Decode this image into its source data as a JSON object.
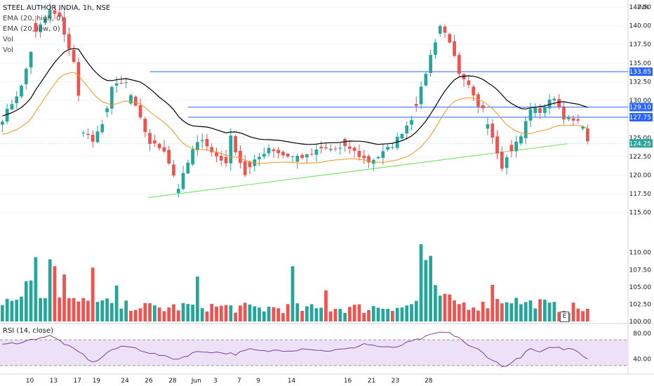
{
  "header": {
    "symbol_line": "STEEL AUTHOR INDIA, 1h, NSE",
    "indicators": [
      "EMA (20, high, 0)",
      "EMA (20, low, 0)",
      "Vol",
      "Vol"
    ],
    "rsi_label": "RSI (14, close)",
    "currency": "INR",
    "event_badge": "E"
  },
  "colors": {
    "up": "#26a69a",
    "down": "#ef5350",
    "ema_high": "#000000",
    "ema_low": "#f7931e",
    "hline": "#2962ff",
    "trendline": "#7ee36d",
    "rsi": "#7e3f98",
    "rsi_band": "#ece1f7"
  },
  "chart_data": {
    "type": "candlestick",
    "price_axis": {
      "ylim": [
        111.5,
        142.5
      ],
      "ticks": [
        "115.00",
        "117.50",
        "120.00",
        "122.50",
        "125.00",
        "127.50",
        "130.00",
        "132.50",
        "135.00",
        "137.50",
        "140.00",
        "142.50"
      ]
    },
    "volume_axis": {
      "ticks": [
        "100.00",
        "102.50",
        "105.00",
        "107.50",
        "110.00"
      ]
    },
    "rsi_axis": {
      "ylim": [
        20,
        90
      ],
      "ticks": [
        "40.00",
        "80.00"
      ],
      "band": [
        30,
        70
      ]
    },
    "x_tick_labels": [
      "10",
      "13",
      "17",
      "19",
      "24",
      "26",
      "28",
      "Jun",
      "3",
      "7",
      "9",
      "14",
      "16",
      "21",
      "23",
      "28"
    ],
    "price_labels": [
      {
        "value": 133.85,
        "text": "133.85",
        "color": "#2962ff"
      },
      {
        "value": 129.1,
        "text": "129.10",
        "color": "#2962ff"
      },
      {
        "value": 127.75,
        "text": "127.75",
        "color": "#2962ff"
      },
      {
        "value": 124.25,
        "text": "124.25",
        "color": "#26a69a"
      }
    ],
    "horizontal_lines": [
      133.85,
      129.1,
      127.75
    ],
    "trendline": {
      "from": [
        30.7,
        117.0
      ],
      "to": [
        105.5,
        124.2
      ]
    },
    "anchors": [
      [
        0,
        127.5
      ],
      [
        4,
        131.8
      ],
      [
        7,
        139
      ],
      [
        10,
        142
      ],
      [
        12,
        141
      ],
      [
        15,
        135
      ],
      [
        17,
        126
      ],
      [
        19,
        124.5
      ],
      [
        21,
        126.6
      ],
      [
        23,
        131.8
      ],
      [
        26,
        132.3
      ],
      [
        28,
        129
      ],
      [
        31,
        124.3
      ],
      [
        34,
        123.4
      ],
      [
        37,
        118.3
      ],
      [
        40,
        123.3
      ],
      [
        42,
        125
      ],
      [
        44,
        123
      ],
      [
        46,
        122
      ],
      [
        47,
        121.8
      ],
      [
        48,
        125
      ],
      [
        51,
        120.1
      ],
      [
        53,
        121.8
      ],
      [
        56,
        123.7
      ],
      [
        59,
        122.7
      ],
      [
        61,
        122.5
      ],
      [
        64,
        122.5
      ],
      [
        67,
        123.5
      ],
      [
        70,
        123.5
      ],
      [
        73,
        123.6
      ],
      [
        75,
        122.6
      ],
      [
        77,
        121.8
      ],
      [
        79,
        122.5
      ],
      [
        82,
        124
      ],
      [
        86,
        127.6
      ],
      [
        88,
        131.5
      ],
      [
        90,
        136
      ],
      [
        92,
        140
      ],
      [
        94,
        138
      ],
      [
        96,
        133.3
      ],
      [
        98,
        131.8
      ],
      [
        100,
        129
      ],
      [
        101,
        129.1
      ],
      [
        103,
        125.2
      ],
      [
        105,
        121.2
      ],
      [
        107,
        123.4
      ],
      [
        109,
        125.2
      ],
      [
        111,
        129
      ],
      [
        113,
        128.5
      ],
      [
        116,
        130.5
      ],
      [
        118,
        127.8
      ],
      [
        120,
        127.2
      ],
      [
        122,
        126.8
      ],
      [
        123,
        124.25
      ]
    ],
    "volume_anchors": [
      [
        0,
        102.2
      ],
      [
        3,
        102.4
      ],
      [
        6,
        105.5
      ],
      [
        8,
        103.2
      ],
      [
        11,
        102.8
      ],
      [
        13,
        102.2
      ],
      [
        16,
        102.1
      ],
      [
        19,
        101.8
      ],
      [
        22,
        101.9
      ],
      [
        25,
        101.4
      ],
      [
        28,
        101.5
      ],
      [
        31,
        101.2
      ],
      [
        34,
        101.1
      ],
      [
        37,
        101.3
      ],
      [
        40,
        101.5
      ],
      [
        43,
        101.4
      ],
      [
        46,
        101.3
      ],
      [
        49,
        101.2
      ],
      [
        52,
        101.1
      ],
      [
        55,
        101.1
      ],
      [
        58,
        101.2
      ],
      [
        61,
        101.1
      ],
      [
        64,
        101.0
      ],
      [
        67,
        101.0
      ],
      [
        70,
        101.1
      ],
      [
        73,
        101.2
      ],
      [
        76,
        101.1
      ],
      [
        79,
        101.3
      ],
      [
        82,
        101.4
      ],
      [
        85,
        101.3
      ],
      [
        88,
        102.5
      ],
      [
        90,
        104.5
      ],
      [
        92,
        103.0
      ],
      [
        95,
        102.0
      ],
      [
        98,
        101.6
      ],
      [
        101,
        101.5
      ],
      [
        104,
        102.2
      ],
      [
        107,
        102.4
      ],
      [
        110,
        101.8
      ],
      [
        113,
        101.9
      ],
      [
        116,
        101.3
      ],
      [
        119,
        101.2
      ],
      [
        123,
        101.0
      ]
    ],
    "volume_spikes": [
      [
        7,
        109.3
      ],
      [
        10,
        109.0
      ],
      [
        11,
        108.0
      ],
      [
        13,
        106.8
      ],
      [
        19,
        107.8
      ],
      [
        24,
        105.2
      ],
      [
        41,
        106.5
      ],
      [
        61,
        108.0
      ],
      [
        68,
        104.5
      ],
      [
        88,
        111.2
      ],
      [
        89,
        108.9
      ],
      [
        90,
        109.5
      ],
      [
        103,
        105.3
      ]
    ],
    "rsi_anchors": [
      [
        0,
        62
      ],
      [
        5,
        68
      ],
      [
        8,
        74
      ],
      [
        10,
        76
      ],
      [
        12,
        69
      ],
      [
        15,
        55
      ],
      [
        17,
        47
      ],
      [
        19,
        34
      ],
      [
        21,
        44
      ],
      [
        23,
        55
      ],
      [
        26,
        60
      ],
      [
        28,
        57
      ],
      [
        31,
        50
      ],
      [
        34,
        44
      ],
      [
        37,
        40
      ],
      [
        40,
        50
      ],
      [
        43,
        52
      ],
      [
        46,
        50
      ],
      [
        49,
        48
      ],
      [
        52,
        55
      ],
      [
        55,
        52
      ],
      [
        58,
        54
      ],
      [
        61,
        54
      ],
      [
        64,
        57
      ],
      [
        67,
        53
      ],
      [
        70,
        54
      ],
      [
        73,
        56
      ],
      [
        76,
        64
      ],
      [
        79,
        60
      ],
      [
        82,
        57
      ],
      [
        85,
        65
      ],
      [
        88,
        72
      ],
      [
        90,
        77
      ],
      [
        92,
        82
      ],
      [
        94,
        80
      ],
      [
        96,
        74
      ],
      [
        98,
        60
      ],
      [
        100,
        55
      ],
      [
        102,
        44
      ],
      [
        104,
        34
      ],
      [
        105,
        28
      ],
      [
        107,
        34
      ],
      [
        109,
        44
      ],
      [
        111,
        56
      ],
      [
        113,
        50
      ],
      [
        116,
        60
      ],
      [
        118,
        55
      ],
      [
        120,
        57
      ],
      [
        123,
        41
      ]
    ]
  }
}
